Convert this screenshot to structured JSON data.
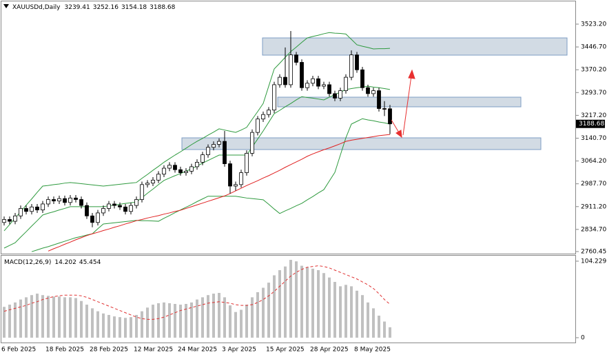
{
  "chart_data": [
    {
      "type": "candlestick",
      "title": "XAUUSDd,Daily",
      "categories": [
        "6 Feb 2025",
        null,
        null,
        null,
        null,
        null,
        null,
        null,
        "18 Feb 2025",
        null,
        null,
        null,
        null,
        null,
        null,
        null,
        "28 Feb 2025",
        null,
        null,
        null,
        null,
        null,
        null,
        null,
        "12 Mar 2025",
        null,
        null,
        null,
        null,
        null,
        null,
        null,
        "24 Mar 2025",
        null,
        null,
        null,
        null,
        null,
        null,
        null,
        "3 Apr 2025",
        null,
        null,
        null,
        null,
        null,
        null,
        null,
        "15 Apr 2025",
        null,
        null,
        null,
        null,
        null,
        null,
        null,
        "28 Apr 2025",
        null,
        null,
        null,
        null,
        null,
        null,
        null,
        "8 May 2025",
        null,
        null,
        null,
        null,
        null,
        null
      ],
      "open": [
        2858,
        2868,
        2862,
        2880,
        2905,
        2895,
        2910,
        2900,
        2920,
        2935,
        2930,
        2938,
        2925,
        2940,
        2935,
        2915,
        2880,
        2858,
        2890,
        2905,
        2920,
        2915,
        2910,
        2895,
        2915,
        2935,
        2985,
        2990,
        3000,
        3020,
        3040,
        3050,
        3035,
        3025,
        3030,
        3045,
        3060,
        3085,
        3110,
        3120,
        3130,
        3055,
        2980,
        2985,
        3025,
        3090,
        3160,
        3205,
        3220,
        3235,
        3320,
        3345,
        3320,
        3420,
        3395,
        3310,
        3325,
        3340,
        3315,
        3320,
        3290,
        3275,
        3300,
        3345,
        3420,
        3370,
        3310,
        3290,
        3300,
        3240,
        3239.41
      ],
      "high": [
        2878,
        2878,
        2890,
        2915,
        2915,
        2920,
        2920,
        2930,
        2945,
        2945,
        2948,
        2948,
        2950,
        2950,
        2945,
        2925,
        2890,
        2900,
        2915,
        2930,
        2930,
        2925,
        2920,
        2925,
        2945,
        2995,
        3000,
        3010,
        3030,
        3050,
        3060,
        3060,
        3045,
        3040,
        3055,
        3070,
        3095,
        3120,
        3130,
        3140,
        3165,
        3065,
        2995,
        3035,
        3100,
        3170,
        3215,
        3230,
        3245,
        3330,
        3355,
        3445,
        3500,
        3430,
        3405,
        3335,
        3350,
        3350,
        3330,
        3330,
        3300,
        3310,
        3355,
        3435,
        3430,
        3380,
        3320,
        3310,
        3310,
        3265,
        3252.16
      ],
      "low": [
        2848,
        2852,
        2852,
        2870,
        2885,
        2885,
        2890,
        2890,
        2910,
        2920,
        2920,
        2915,
        2915,
        2925,
        2905,
        2870,
        2842,
        2848,
        2880,
        2895,
        2905,
        2900,
        2885,
        2885,
        2905,
        2925,
        2975,
        2980,
        2990,
        3010,
        3030,
        3025,
        3015,
        3015,
        3020,
        3035,
        3050,
        3075,
        3100,
        3110,
        3045,
        2955,
        2965,
        2975,
        3015,
        3080,
        3150,
        3195,
        3210,
        3225,
        3310,
        3310,
        3310,
        3385,
        3300,
        3300,
        3315,
        3305,
        3305,
        3280,
        3265,
        3265,
        3290,
        3335,
        3360,
        3300,
        3280,
        3280,
        3230,
        3215,
        3154.18
      ],
      "close": [
        2868,
        2862,
        2880,
        2905,
        2895,
        2910,
        2900,
        2920,
        2935,
        2930,
        2938,
        2925,
        2940,
        2935,
        2915,
        2880,
        2858,
        2890,
        2905,
        2920,
        2915,
        2910,
        2895,
        2915,
        2935,
        2985,
        2990,
        3000,
        3020,
        3040,
        3050,
        3035,
        3025,
        3030,
        3045,
        3060,
        3085,
        3110,
        3120,
        3130,
        3055,
        2980,
        2985,
        3025,
        3090,
        3160,
        3205,
        3220,
        3235,
        3320,
        3345,
        3320,
        3420,
        3395,
        3310,
        3325,
        3340,
        3315,
        3320,
        3290,
        3275,
        3300,
        3345,
        3420,
        3370,
        3310,
        3290,
        3300,
        3240,
        3239.41,
        3188.68
      ],
      "up_color": "#ffffff",
      "down_color": "#000000",
      "overlays": [
        {
          "color": "#2e9a3e",
          "values": [
            2830,
            2851,
            2873,
            2894,
            2916,
            2937,
            2959,
            2980,
            2982,
            2985,
            2987,
            2990,
            2992,
            2990,
            2988,
            2986,
            2984,
            2982,
            2980,
            2982,
            2984,
            2986,
            2988,
            2990,
            2992,
            3006,
            3019,
            3033,
            3046,
            3060,
            3072,
            3084,
            3095,
            3107,
            3119,
            3130,
            3140,
            3151,
            3161,
            3172,
            3168,
            3164,
            3160,
            3168,
            3177,
            3204,
            3230,
            3257,
            3315,
            3373,
            3392,
            3412,
            3431,
            3446,
            3462,
            3477,
            3482,
            3486,
            3491,
            3495,
            3493,
            3492,
            3490,
            3472,
            3454,
            3449,
            3445,
            3440,
            3441,
            3441,
            3442
          ]
        },
        {
          "color": "#2e9a3e",
          "values": [
            2772,
            2781,
            2790,
            2809,
            2827,
            2846,
            2864,
            2883,
            2889,
            2894,
            2900,
            2905,
            2911,
            2911,
            2911,
            2911,
            2911,
            2911,
            2911,
            2914,
            2916,
            2919,
            2922,
            2924,
            2927,
            2941,
            2956,
            2970,
            2985,
            2999,
            3007,
            3015,
            3022,
            3030,
            3038,
            3047,
            3057,
            3066,
            3075,
            3084,
            3084,
            3084,
            3084,
            3084,
            3084,
            3111,
            3138,
            3165,
            3194,
            3223,
            3234,
            3246,
            3257,
            3269,
            3280,
            3277,
            3275,
            3272,
            3269,
            3278,
            3287,
            3295,
            3304,
            3307,
            3310,
            3312,
            3315,
            3312,
            3310,
            3307,
            3304
          ]
        },
        {
          "color": "#2e9a3e",
          "values": [
            null,
            null,
            null,
            null,
            null,
            2760,
            2766,
            2772,
            2777,
            2783,
            2789,
            2795,
            2801,
            2807,
            2811,
            2816,
            2820,
            2837,
            2853,
            2855,
            2857,
            2859,
            2861,
            2863,
            2865,
            2864,
            2864,
            2863,
            2862,
            2872,
            2881,
            2891,
            2900,
            2909,
            2918,
            2928,
            2937,
            2946,
            2946,
            2946,
            2946,
            2946,
            2946,
            2943,
            2940,
            2938,
            2936,
            2934,
            2919,
            2903,
            2888,
            2897,
            2905,
            2914,
            2922,
            2934,
            2945,
            2957,
            2968,
            2997,
            3026,
            3084,
            3142,
            3188,
            3197,
            3206,
            3202,
            3199,
            3195,
            3192,
            3188
          ]
        },
        {
          "color": "#e02020",
          "values": [
            null,
            null,
            null,
            null,
            null,
            null,
            null,
            null,
            2762,
            2770,
            2777,
            2785,
            2792,
            2800,
            2807,
            2814,
            2820,
            2825,
            2831,
            2836,
            2842,
            2847,
            2853,
            2858,
            2864,
            2868,
            2873,
            2877,
            2881,
            2886,
            2890,
            2895,
            2899,
            2905,
            2911,
            2917,
            2923,
            2929,
            2935,
            2941,
            2947,
            2955,
            2964,
            2973,
            2982,
            2990,
            2998,
            3007,
            3015,
            3024,
            3033,
            3043,
            3052,
            3061,
            3070,
            3080,
            3088,
            3095,
            3102,
            3108,
            3115,
            3122,
            3130,
            3134,
            3137,
            3140,
            3143,
            3146,
            3149,
            3151,
            3153
          ]
        }
      ],
      "ylim": [
        2753.5,
        3599.5
      ],
      "yticks": [
        2760.45,
        {
          "value": 2834.7,
          "label": "2834.70"
        },
        {
          "value": 2911.2,
          "label": "2911.20"
        },
        {
          "value": 2987.7,
          "label": "2987.70"
        },
        {
          "value": 3064.2,
          "label": "3064.20"
        },
        {
          "value": 3140.7,
          "label": "3140.70"
        },
        {
          "value": 3217.2,
          "label": "3217.20"
        },
        {
          "value": 3293.7,
          "label": "3293.70"
        },
        {
          "value": 3370.2,
          "label": "3370.20"
        },
        {
          "value": 3446.7,
          "label": "3446.70"
        },
        {
          "value": 3523.2,
          "label": "3523.20"
        }
      ]
    },
    {
      "type": "macd",
      "title": "MACD(12,26,9)",
      "series": [
        {
          "type": "bar",
          "color": "#c0c0c0",
          "values": [
            42,
            45,
            48,
            52,
            55,
            58,
            60,
            58,
            57,
            56,
            56,
            55,
            55,
            54,
            50,
            45,
            40,
            36,
            33,
            31,
            29,
            28,
            27,
            28,
            31,
            36,
            41,
            45,
            47,
            48,
            47,
            46,
            45,
            46,
            48,
            52,
            55,
            58,
            60,
            61,
            55,
            44,
            35,
            38,
            45,
            55,
            62,
            68,
            75,
            85,
            92,
            97,
            106,
            104,
            98,
            96,
            94,
            92,
            88,
            82,
            76,
            70,
            72,
            70,
            64,
            58,
            48,
            40,
            30,
            22,
            14.202
          ]
        },
        {
          "type": "line",
          "color": "#e03030",
          "values": [
            36,
            38,
            40,
            42,
            44,
            47,
            49,
            52,
            54,
            56,
            57,
            58,
            58,
            58,
            57,
            55,
            52,
            49,
            46,
            43,
            40,
            37,
            34,
            31,
            28,
            26,
            25,
            25,
            26,
            28,
            31,
            34,
            37,
            39,
            41,
            43,
            45,
            47,
            48,
            49,
            48,
            47,
            45,
            44,
            44,
            45,
            48,
            52,
            57,
            63,
            70,
            77,
            84,
            89,
            93,
            96,
            97,
            98,
            97,
            95,
            92,
            89,
            86,
            83,
            80,
            76,
            72,
            67,
            60,
            52,
            45.454
          ]
        }
      ],
      "ylim": [
        -6.6,
        111.7
      ],
      "yticks": [
        0,
        104.229
      ]
    }
  ]
}
